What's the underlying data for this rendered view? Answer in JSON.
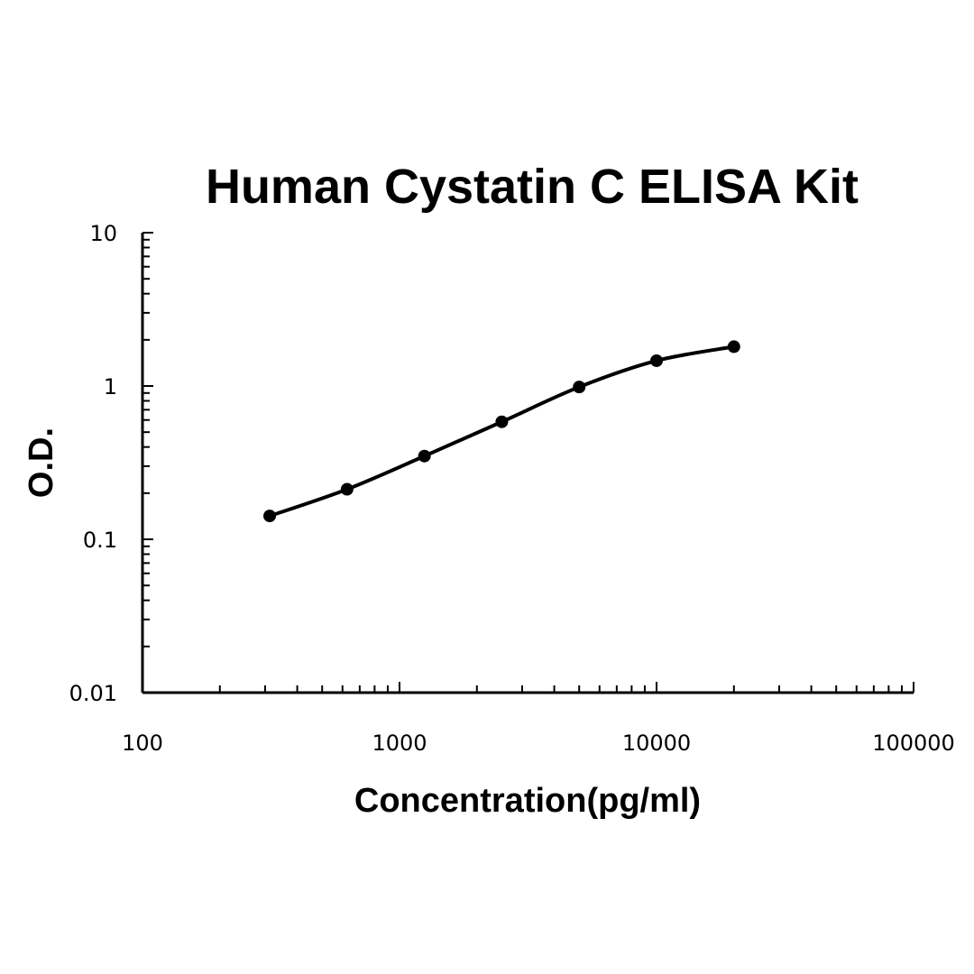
{
  "chart_data": {
    "type": "line",
    "title": "Human Cystatin C ELISA Kit",
    "xlabel": "Concentration(pg/ml)",
    "ylabel": "O.D.",
    "x_scale": "log",
    "y_scale": "log",
    "xlim": [
      100,
      100000
    ],
    "ylim": [
      0.01,
      10
    ],
    "x_ticks": [
      "100",
      "1000",
      "10000",
      "100000"
    ],
    "y_ticks": [
      "10",
      "1",
      "0.1",
      "0.01"
    ],
    "grid": false,
    "legend": "none",
    "series": [
      {
        "x": [
          312.5,
          625,
          1250,
          2500,
          5000,
          10000,
          20000
        ],
        "values": [
          0.142,
          0.212,
          0.349,
          0.584,
          0.985,
          1.462,
          1.805
        ]
      }
    ]
  }
}
